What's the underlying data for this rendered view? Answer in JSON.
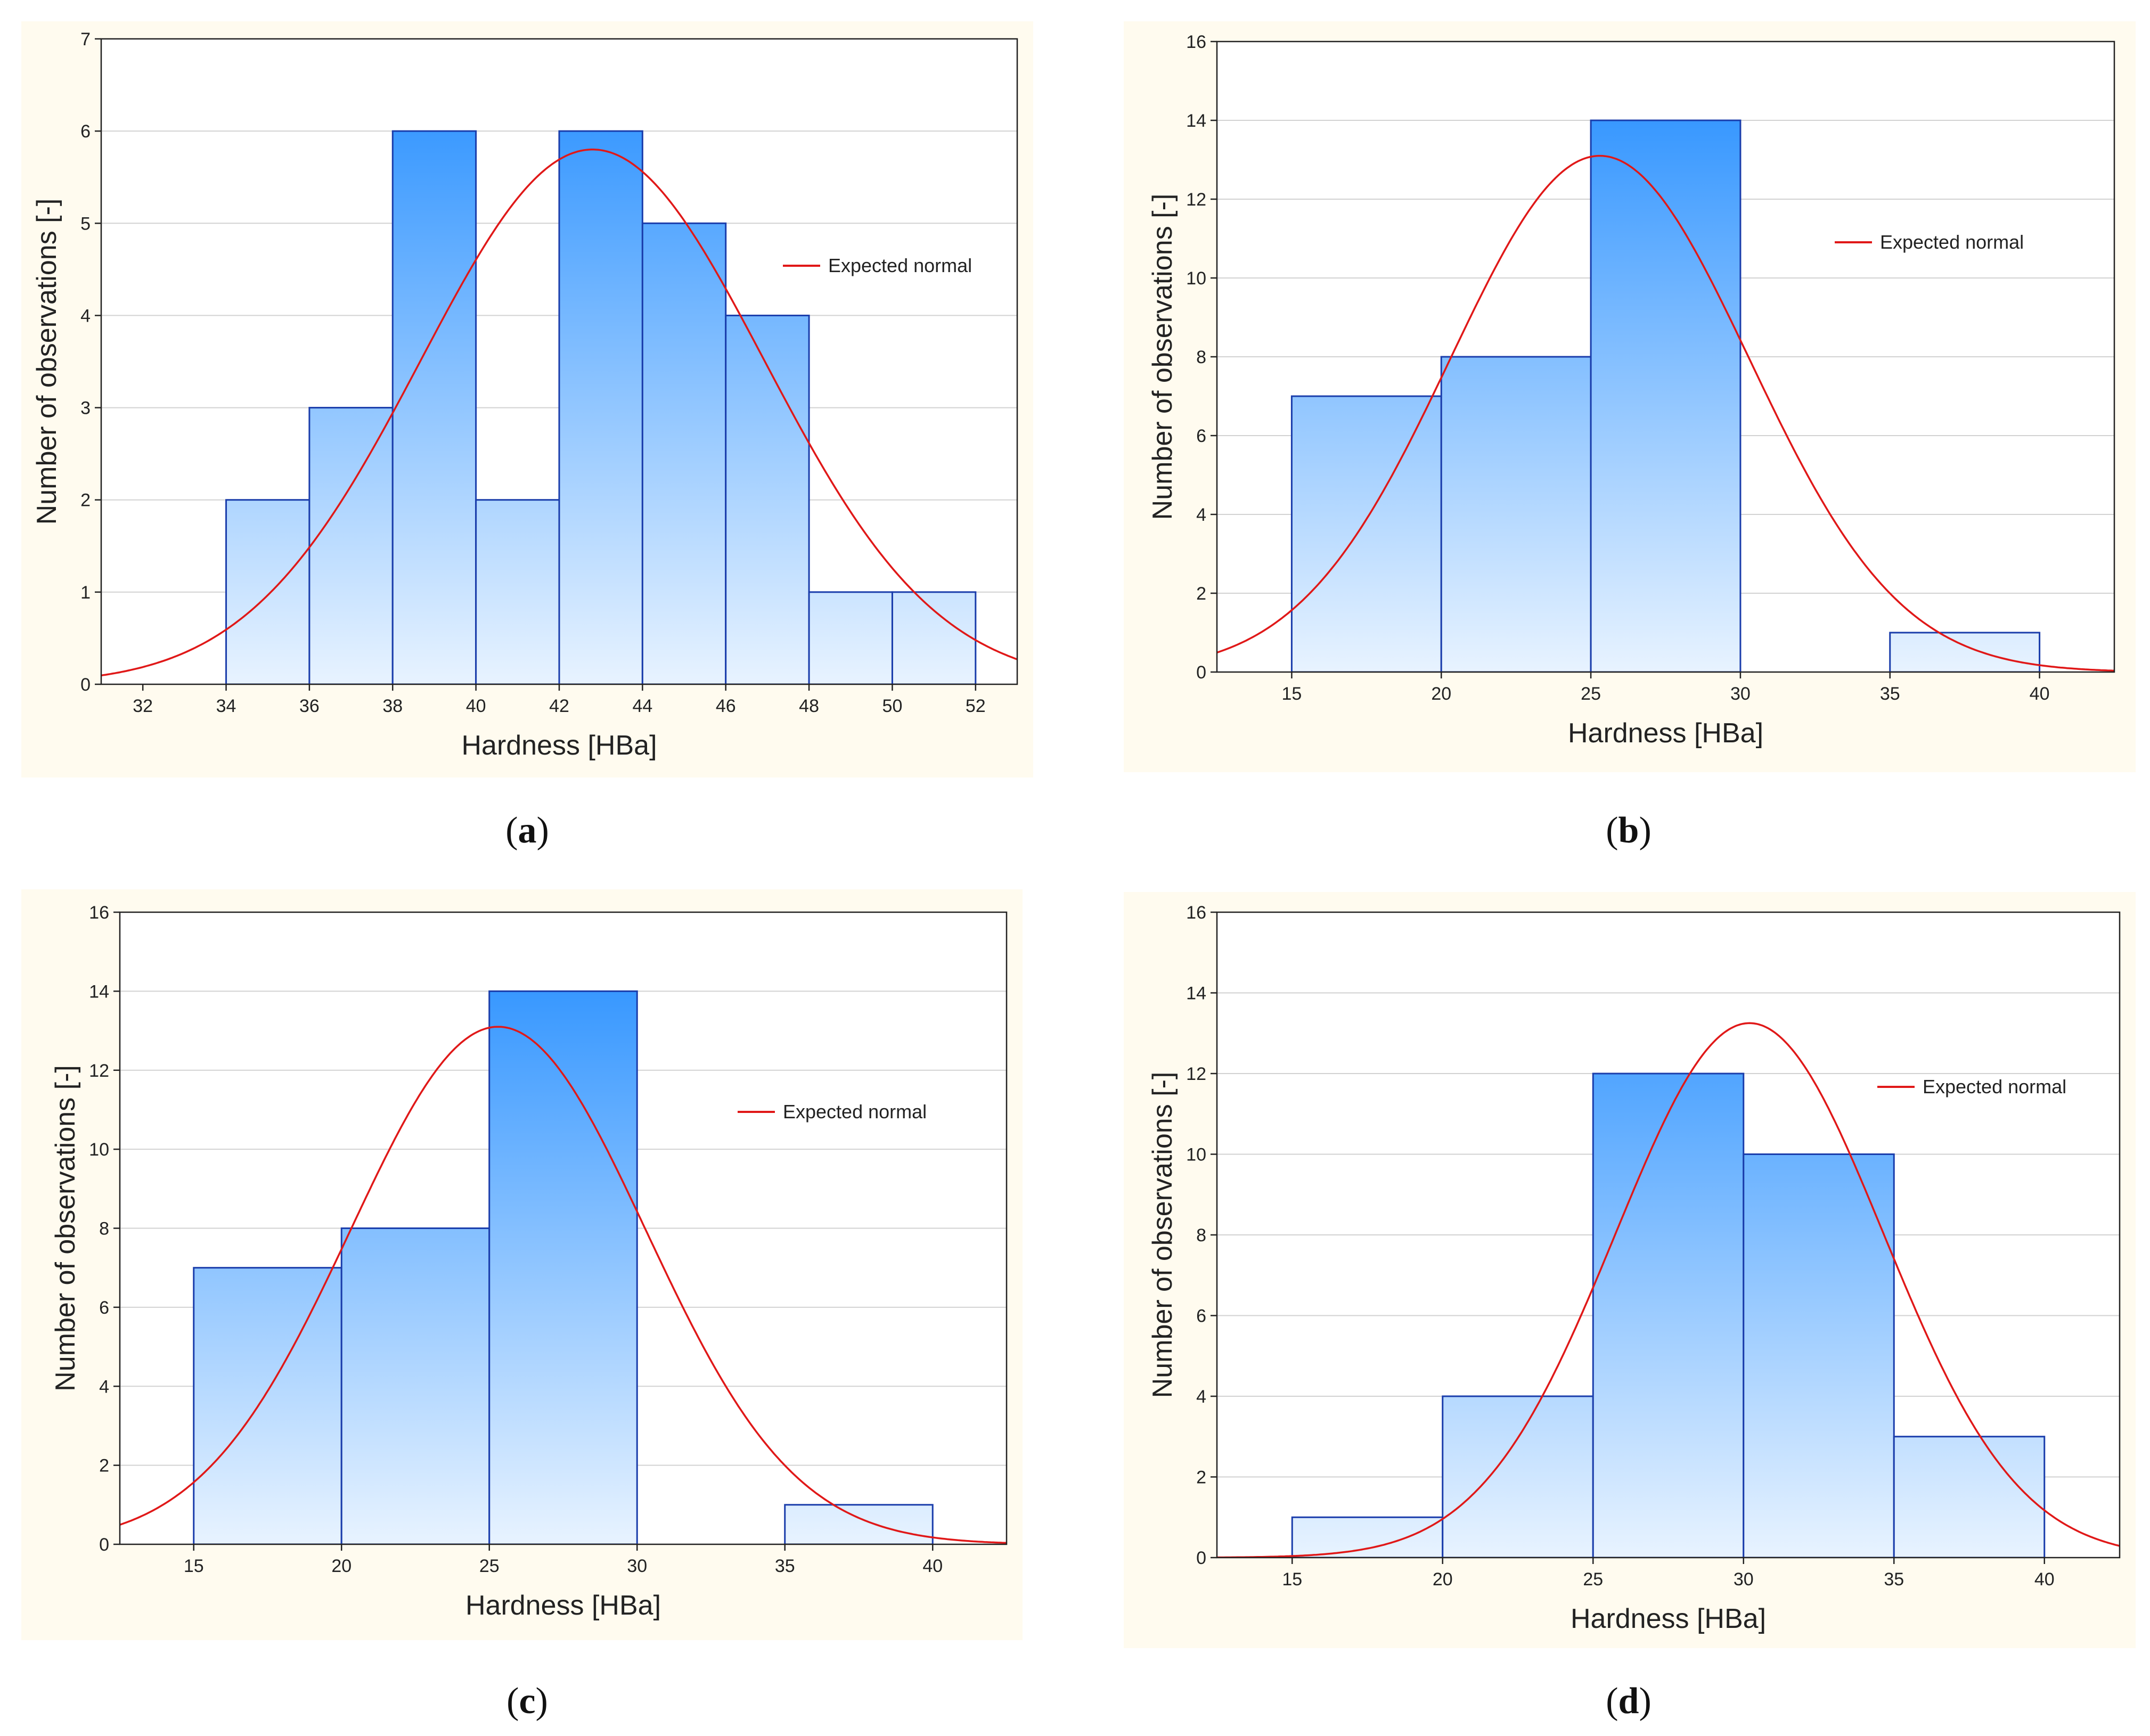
{
  "chart_data": [
    {
      "type": "bar",
      "caption": "a",
      "xlabel": "Hardness [HBa]",
      "ylabel": "Number of observations [-]",
      "xlim": [
        31,
        53
      ],
      "ylim": [
        0,
        7
      ],
      "x_ticks": [
        "32",
        "34",
        "36",
        "38",
        "40",
        "42",
        "44",
        "46",
        "48",
        "50",
        "52"
      ],
      "y_ticks": [
        "0",
        "1",
        "2",
        "3",
        "4",
        "5",
        "6",
        "7"
      ],
      "bins": [
        {
          "from": 34,
          "to": 36,
          "count": 2
        },
        {
          "from": 36,
          "to": 38,
          "count": 3
        },
        {
          "from": 38,
          "to": 40,
          "count": 6
        },
        {
          "from": 40,
          "to": 42,
          "count": 2
        },
        {
          "from": 42,
          "to": 44,
          "count": 6
        },
        {
          "from": 44,
          "to": 46,
          "count": 5
        },
        {
          "from": 46,
          "to": 48,
          "count": 4
        },
        {
          "from": 48,
          "to": 50,
          "count": 1
        },
        {
          "from": 50,
          "to": 52,
          "count": 1
        }
      ],
      "normal": {
        "mean": 42.8,
        "sd": 4.12,
        "peak": 5.8
      },
      "legend": "Expected normal",
      "legend_position": "upper-right",
      "grid": true
    },
    {
      "type": "bar",
      "caption": "b",
      "xlabel": "Hardness [HBa]",
      "ylabel": "Number of observations [-]",
      "xlim": [
        12.5,
        42.5
      ],
      "ylim": [
        0,
        16
      ],
      "x_ticks": [
        "15",
        "20",
        "25",
        "30",
        "35",
        "40"
      ],
      "y_ticks": [
        "0",
        "2",
        "4",
        "6",
        "8",
        "10",
        "12",
        "14",
        "16"
      ],
      "bins": [
        {
          "from": 15,
          "to": 20,
          "count": 7
        },
        {
          "from": 20,
          "to": 25,
          "count": 8
        },
        {
          "from": 25,
          "to": 30,
          "count": 14
        },
        {
          "from": 35,
          "to": 40,
          "count": 1
        }
      ],
      "normal": {
        "mean": 25.3,
        "sd": 5.0,
        "peak": 13.1
      },
      "legend": "Expected normal",
      "legend_position": "upper-right",
      "grid": true
    },
    {
      "type": "bar",
      "caption": "c",
      "xlabel": "Hardness [HBa]",
      "ylabel": "Number of observations [-]",
      "xlim": [
        12.5,
        42.5
      ],
      "ylim": [
        0,
        16
      ],
      "x_ticks": [
        "15",
        "20",
        "25",
        "30",
        "35",
        "40"
      ],
      "y_ticks": [
        "0",
        "2",
        "4",
        "6",
        "8",
        "10",
        "12",
        "14",
        "16"
      ],
      "bins": [
        {
          "from": 15,
          "to": 20,
          "count": 7
        },
        {
          "from": 20,
          "to": 25,
          "count": 8
        },
        {
          "from": 25,
          "to": 30,
          "count": 14
        },
        {
          "from": 35,
          "to": 40,
          "count": 1
        }
      ],
      "normal": {
        "mean": 25.3,
        "sd": 5.0,
        "peak": 13.1
      },
      "legend": "Expected normal",
      "legend_position": "upper-right",
      "grid": true
    },
    {
      "type": "bar",
      "caption": "d",
      "xlabel": "Hardness [HBa]",
      "ylabel": "Number of observations [-]",
      "xlim": [
        12.5,
        42.5
      ],
      "ylim": [
        0,
        16
      ],
      "x_ticks": [
        "15",
        "20",
        "25",
        "30",
        "35",
        "40"
      ],
      "y_ticks": [
        "0",
        "2",
        "4",
        "6",
        "8",
        "10",
        "12",
        "14",
        "16"
      ],
      "bins": [
        {
          "from": 15,
          "to": 20,
          "count": 1
        },
        {
          "from": 20,
          "to": 25,
          "count": 4
        },
        {
          "from": 25,
          "to": 30,
          "count": 12
        },
        {
          "from": 30,
          "to": 35,
          "count": 10
        },
        {
          "from": 35,
          "to": 40,
          "count": 3
        }
      ],
      "normal": {
        "mean": 30.2,
        "sd": 4.45,
        "peak": 13.25
      },
      "legend": "Expected normal",
      "legend_position": "upper-right",
      "grid": true
    }
  ]
}
